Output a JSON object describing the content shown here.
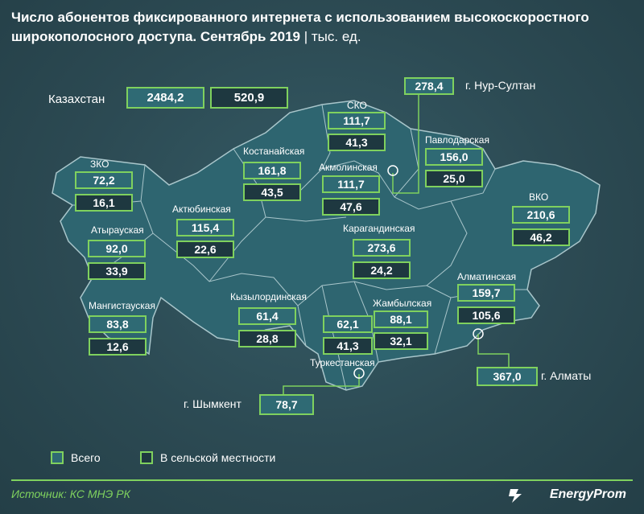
{
  "title": {
    "text": "Число абонентов фиксированного интернета с использованием высокоскоростного широкополосного доступа. Сентябрь 2019",
    "unit": "| тыс. ед."
  },
  "country": {
    "name": "Казахстан",
    "total": "2484,2",
    "rural": "520,9"
  },
  "regions": {
    "sko": {
      "name": "СКО",
      "total": "111,7",
      "rural": "41,3"
    },
    "pavlodar": {
      "name": "Павлодарская",
      "total": "156,0",
      "rural": "25,0"
    },
    "kostanay": {
      "name": "Костанайская",
      "total": "161,8",
      "rural": "43,5"
    },
    "akmola": {
      "name": "Акмолинская",
      "total": "111,7",
      "rural": "47,6"
    },
    "zko": {
      "name": "ЗКО",
      "total": "72,2",
      "rural": "16,1"
    },
    "aktobe": {
      "name": "Актюбинская",
      "total": "115,4",
      "rural": "22,6"
    },
    "vko": {
      "name": "ВКО",
      "total": "210,6",
      "rural": "46,2"
    },
    "atyrau": {
      "name": "Атырауская",
      "total": "92,0",
      "rural": "33,9"
    },
    "karaganda": {
      "name": "Карагандинская",
      "total": "273,6",
      "rural": "24,2"
    },
    "almaty_reg": {
      "name": "Алматинская",
      "total": "159,7",
      "rural": "105,6"
    },
    "mangistau": {
      "name": "Мангистауская",
      "total": "83,8",
      "rural": "12,6"
    },
    "kyzylorda": {
      "name": "Кызылординская",
      "total": "61,4",
      "rural": "28,8"
    },
    "turkestan": {
      "name": "Туркестанская",
      "total": "62,1",
      "rural": "41,3"
    },
    "zhambyl": {
      "name": "Жамбылская",
      "total": "88,1",
      "rural": "32,1"
    }
  },
  "cities": {
    "nursultan": {
      "name": "г. Нур-Султан",
      "total": "278,4"
    },
    "almaty": {
      "name": "г. Алматы",
      "total": "367,0"
    },
    "shymkent": {
      "name": "г. Шымкент",
      "total": "78,7"
    }
  },
  "legend": {
    "total": "Всего",
    "rural": "В сельской местности"
  },
  "source": "Источник: КС МНЭ РК",
  "brand": "EnergyProm",
  "colors": {
    "accent": "#7fd15e",
    "total_fill": "#2f6a74",
    "rural_fill": "#1e3840",
    "land": "#2e6570"
  }
}
